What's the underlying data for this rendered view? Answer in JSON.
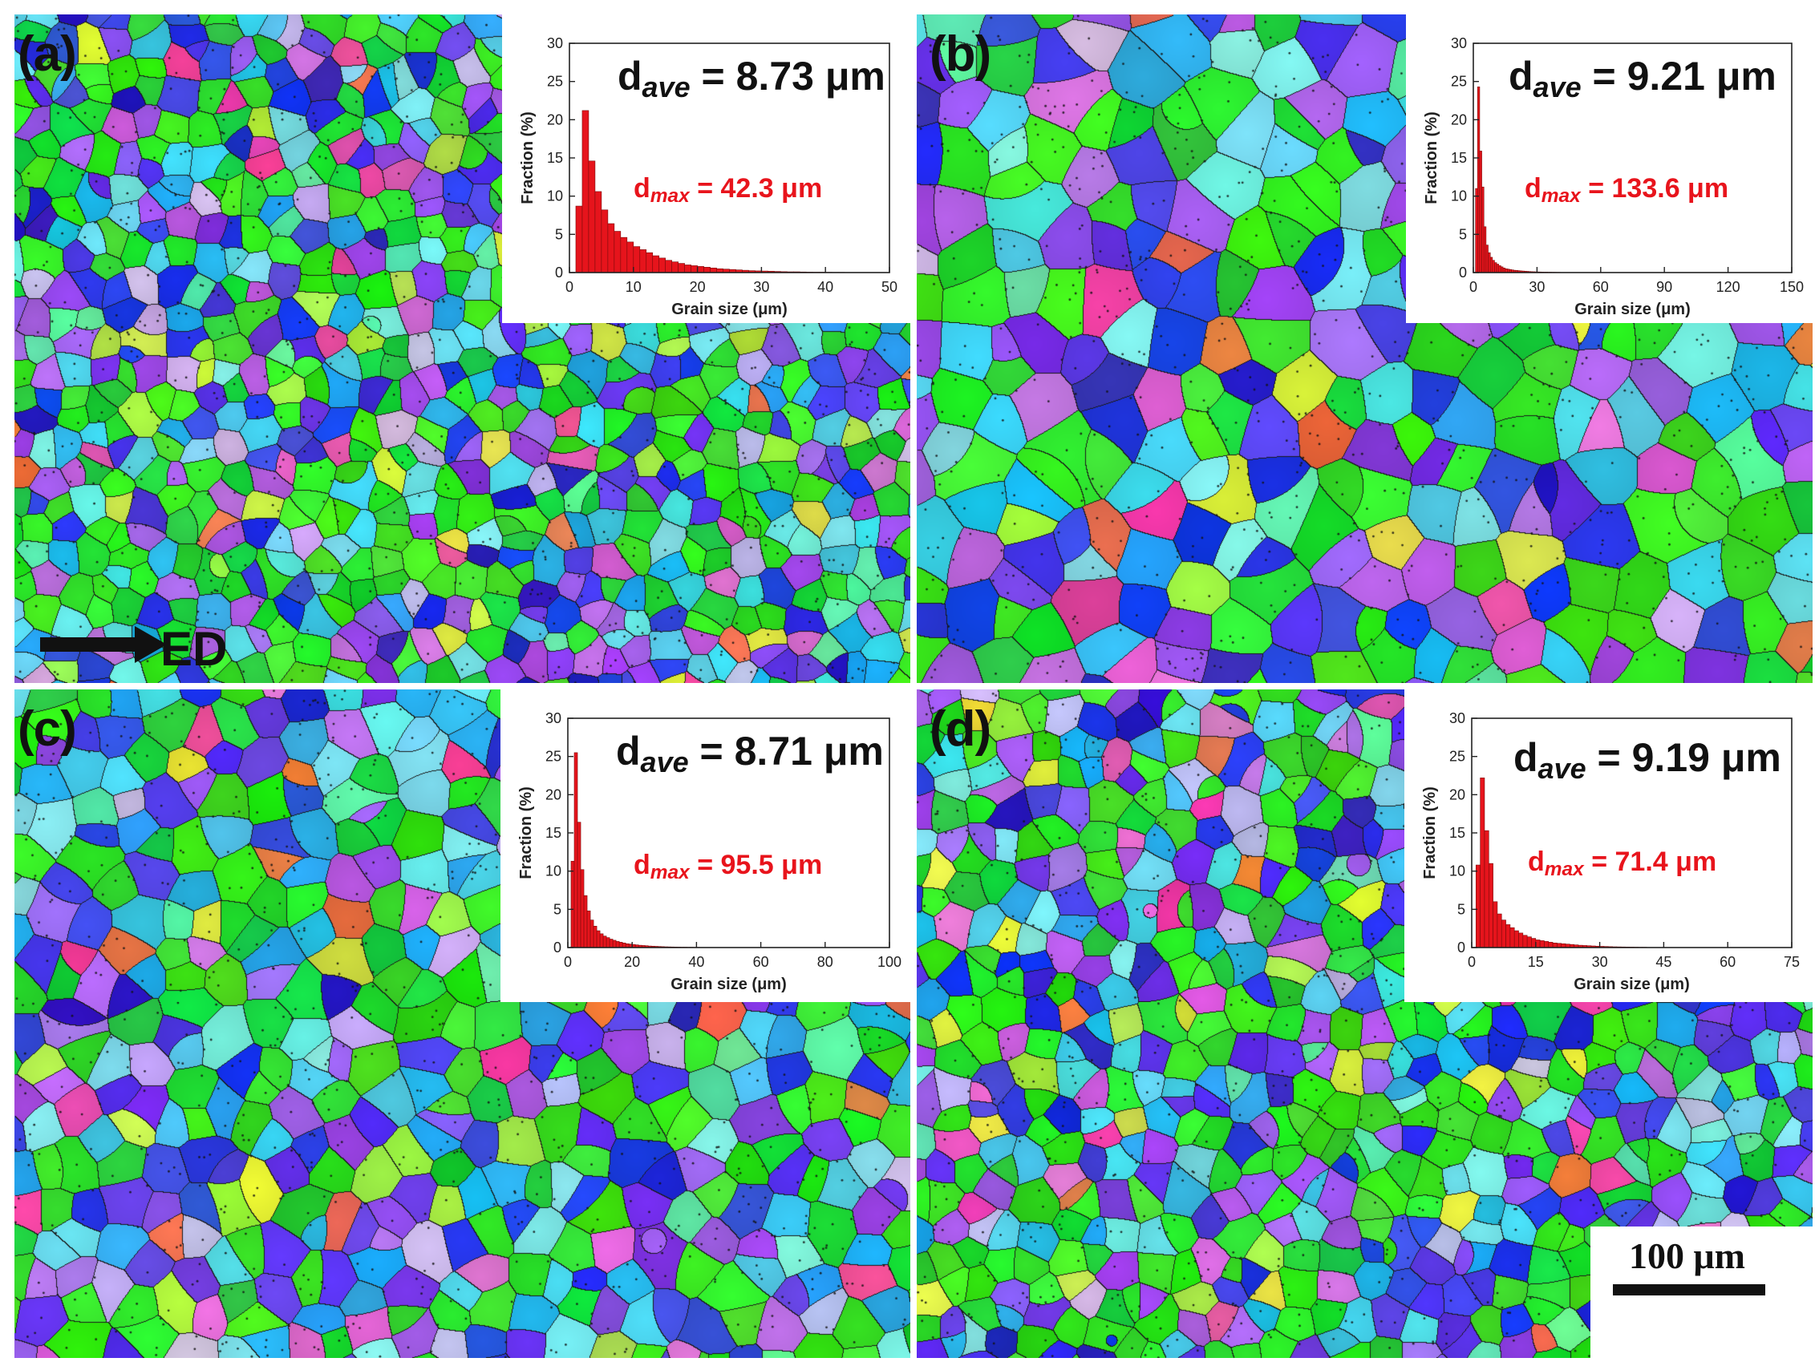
{
  "colors": {
    "grain_palette": [
      "#2ee81e",
      "#3ff02c",
      "#22d83a",
      "#1e3cf0",
      "#3a48e6",
      "#5a3df0",
      "#7a3ce8",
      "#9a52f0",
      "#b46af0",
      "#2ab4f0",
      "#4ad8f0",
      "#7ae8ee",
      "#c8b8f0",
      "#e06cd8",
      "#f04aa8",
      "#f07848",
      "#e0f044",
      "#a8f048",
      "#60f0a8",
      "#2c22c8"
    ],
    "boundary": "#1a1a1a",
    "bar_fill": "#e6141c",
    "dmax_text": "#e8141c"
  },
  "panels": [
    {
      "label": "(a)",
      "d_ave_prefix": "d",
      "d_ave_sub": "ave",
      "d_ave_value": "= 8.73 μm",
      "d_max_prefix": "d",
      "d_max_sub": "max",
      "d_max_value": "= 42.3 μm",
      "grain_scale": 1.0,
      "chart_data": {
        "type": "bar",
        "ylabel": "Fraction (%)",
        "xlabel": "Grain size (μm)",
        "xlim": [
          0,
          50
        ],
        "ylim": [
          0,
          30
        ],
        "xticks": [
          "0",
          "10",
          "20",
          "30",
          "40",
          "50"
        ],
        "yticks": [
          "0",
          "5",
          "10",
          "15",
          "20",
          "25",
          "30"
        ],
        "bin_width": 1,
        "values": [
          8.7,
          21.2,
          14.6,
          10.6,
          8.2,
          6.4,
          5.4,
          4.6,
          4.0,
          3.4,
          3.0,
          2.6,
          2.2,
          1.9,
          1.6,
          1.4,
          1.2,
          1.0,
          0.9,
          0.8,
          0.7,
          0.6,
          0.5,
          0.45,
          0.4,
          0.35,
          0.3,
          0.25,
          0.22,
          0.2,
          0.18,
          0.15,
          0.12,
          0.1,
          0.1,
          0.08,
          0.06,
          0.05,
          0.05,
          0.04,
          0.03,
          0.03
        ]
      }
    },
    {
      "label": "(b)",
      "d_ave_prefix": "d",
      "d_ave_sub": "ave",
      "d_ave_value": "= 9.21 μm",
      "d_max_prefix": "d",
      "d_max_sub": "max",
      "d_max_value": "= 133.6 μm",
      "grain_scale": 1.7,
      "chart_data": {
        "type": "bar",
        "ylabel": "Fraction (%)",
        "xlabel": "Grain size (μm)",
        "xlim": [
          0,
          150
        ],
        "ylim": [
          0,
          30
        ],
        "xticks": [
          "0",
          "30",
          "60",
          "90",
          "120",
          "150"
        ],
        "yticks": [
          "0",
          "5",
          "10",
          "15",
          "20",
          "25",
          "30"
        ],
        "bin_width": 1,
        "values": [
          11.0,
          24.3,
          15.9,
          11.2,
          6.0,
          3.6,
          2.6,
          2.0,
          1.6,
          1.3,
          1.1,
          0.9,
          0.75,
          0.6,
          0.5,
          0.45,
          0.4,
          0.35,
          0.3,
          0.28,
          0.25,
          0.22,
          0.2,
          0.18,
          0.16,
          0.14,
          0.12,
          0.11,
          0.1,
          0.09,
          0.08,
          0.07,
          0.06,
          0.06,
          0.05,
          0.05,
          0.04,
          0.04,
          0.03,
          0.03
        ]
      }
    },
    {
      "label": "(c)",
      "d_ave_prefix": "d",
      "d_ave_sub": "ave",
      "d_ave_value": "= 8.71 μm",
      "d_max_prefix": "d",
      "d_max_sub": "max",
      "d_max_value": "= 95.5 μm",
      "grain_scale": 1.35,
      "chart_data": {
        "type": "bar",
        "ylabel": "Fraction (%)",
        "xlabel": "Grain size (μm)",
        "xlim": [
          0,
          100
        ],
        "ylim": [
          0,
          30
        ],
        "xticks": [
          "0",
          "20",
          "40",
          "60",
          "80",
          "100"
        ],
        "yticks": [
          "0",
          "5",
          "10",
          "15",
          "20",
          "25",
          "30"
        ],
        "bin_width": 1,
        "values": [
          11.3,
          25.5,
          16.4,
          10.2,
          6.8,
          4.8,
          3.6,
          2.8,
          2.2,
          1.8,
          1.5,
          1.3,
          1.1,
          0.95,
          0.8,
          0.7,
          0.6,
          0.5,
          0.45,
          0.4,
          0.35,
          0.3,
          0.27,
          0.24,
          0.2,
          0.18,
          0.16,
          0.14,
          0.12,
          0.1,
          0.09,
          0.08,
          0.07,
          0.06,
          0.05,
          0.05,
          0.04,
          0.04,
          0.03,
          0.03
        ]
      }
    },
    {
      "label": "(d)",
      "d_ave_prefix": "d",
      "d_ave_sub": "ave",
      "d_ave_value": "= 9.19 μm",
      "d_max_prefix": "d",
      "d_max_sub": "max",
      "d_max_value": "= 71.4 μm",
      "grain_scale": 1.1,
      "chart_data": {
        "type": "bar",
        "ylabel": "Fraction (%)",
        "xlabel": "Grain size (μm)",
        "xlim": [
          0,
          75
        ],
        "ylim": [
          0,
          30
        ],
        "xticks": [
          "0",
          "15",
          "30",
          "45",
          "60",
          "75"
        ],
        "yticks": [
          "0",
          "5",
          "10",
          "15",
          "20",
          "25",
          "30"
        ],
        "bin_width": 1,
        "values": [
          10.8,
          22.2,
          15.3,
          11.0,
          6.0,
          4.4,
          3.6,
          3.0,
          2.6,
          2.2,
          1.9,
          1.6,
          1.4,
          1.2,
          1.0,
          0.9,
          0.8,
          0.7,
          0.6,
          0.55,
          0.5,
          0.45,
          0.4,
          0.35,
          0.3,
          0.27,
          0.24,
          0.21,
          0.18,
          0.16,
          0.14,
          0.12,
          0.1,
          0.09,
          0.08,
          0.07,
          0.06,
          0.05,
          0.04,
          0.04
        ]
      }
    }
  ],
  "direction_arrow": {
    "label": "ED"
  },
  "scale_bar": {
    "label": "100 μm"
  }
}
